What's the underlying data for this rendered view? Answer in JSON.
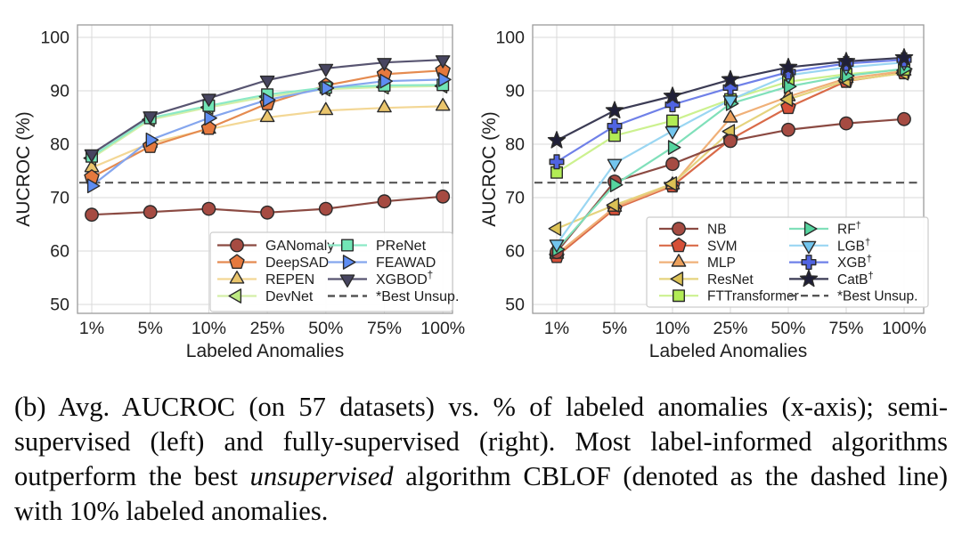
{
  "figure": {
    "caption": {
      "part1": "(b) Avg. AUCROC (on 57 datasets) vs. % of labeled anomalies (x-axis); semi-supervised (left) and fully-supervised (right). Most label-informed algorithms outperform the best ",
      "italic_word": "unsupervised",
      "part2": " algorithm CBLOF (denoted as the dashed line) with 10% labeled anomalies."
    }
  },
  "chart_data": [
    {
      "type": "line",
      "panel": "semi-supervised (left)",
      "title": "",
      "xlabel": "Labeled Anomalies",
      "ylabel": "AUCROC (%)",
      "categories": [
        "1%",
        "5%",
        "10%",
        "25%",
        "50%",
        "75%",
        "100%"
      ],
      "yticks": [
        50,
        60,
        70,
        80,
        90,
        100
      ],
      "ylim": [
        48,
        102
      ],
      "grid": true,
      "legend_position": "lower right",
      "legend_columns": 2,
      "legend_order": [
        "GANomaly",
        "DeepSAD",
        "REPEN",
        "DevNet",
        "PReNet",
        "FEAWAD",
        "XGBOD†",
        "*Best Unsup."
      ],
      "baseline": {
        "label": "*Best Unsup.",
        "value": 72.8,
        "color": "#555555",
        "style": "dashed"
      },
      "series": [
        {
          "name": "GANomaly",
          "marker": "circle",
          "color": "#A64B42",
          "line_color": "#8B4A42",
          "values": [
            66.8,
            67.3,
            67.9,
            67.2,
            67.9,
            69.3,
            70.2
          ]
        },
        {
          "name": "REPEN",
          "marker": "triangle-up",
          "color": "#EAC56C",
          "line_color": "#F3D795",
          "values": [
            75.6,
            80.2,
            82.8,
            85.0,
            86.3,
            86.8,
            87.1
          ]
        },
        {
          "name": "DevNet",
          "marker": "triangle-left",
          "color": "#BDE982",
          "line_color": "#D4EFA8",
          "values": [
            77.4,
            84.6,
            86.9,
            88.9,
            90.3,
            90.7,
            90.9
          ]
        },
        {
          "name": "DeepSAD",
          "marker": "pentagon",
          "color": "#E5793E",
          "line_color": "#E58B50",
          "values": [
            73.8,
            79.6,
            83.0,
            87.6,
            91.0,
            93.1,
            93.8
          ]
        },
        {
          "name": "PReNet",
          "marker": "square",
          "color": "#71E6B6",
          "line_color": "#8CE9C6",
          "values": [
            77.7,
            84.9,
            87.2,
            89.3,
            90.6,
            91.0,
            91.1
          ]
        },
        {
          "name": "FEAWAD",
          "marker": "triangle-right",
          "color": "#5E8DF2",
          "line_color": "#85A6EE",
          "values": [
            72.2,
            80.8,
            84.9,
            88.3,
            90.5,
            91.8,
            92.1
          ]
        },
        {
          "name": "XGBOD†",
          "marker": "triangle-down",
          "color": "#474560",
          "line_color": "#585571",
          "values": [
            78.2,
            85.3,
            88.6,
            92.0,
            94.2,
            95.3,
            95.8
          ]
        }
      ]
    },
    {
      "type": "line",
      "panel": "fully-supervised (right)",
      "title": "",
      "xlabel": "Labeled Anomalies",
      "ylabel": "AUCROC (%)",
      "categories": [
        "1%",
        "5%",
        "10%",
        "25%",
        "50%",
        "75%",
        "100%"
      ],
      "yticks": [
        50,
        60,
        70,
        80,
        90,
        100
      ],
      "ylim": [
        48,
        102
      ],
      "grid": true,
      "legend_position": "lower right",
      "legend_columns": 2,
      "legend_order": [
        "NB",
        "SVM",
        "MLP",
        "ResNet",
        "FTTransformer",
        "RF†",
        "LGB†",
        "XGB†",
        "CatB†",
        "*Best Unsup."
      ],
      "baseline": {
        "label": "*Best Unsup.",
        "value": 72.8,
        "color": "#555555",
        "style": "dashed"
      },
      "series": [
        {
          "name": "SVM",
          "marker": "pentagon",
          "color": "#D65038",
          "line_color": "#D96A48",
          "values": [
            59.0,
            67.9,
            72.2,
            80.9,
            86.9,
            91.8,
            93.4
          ]
        },
        {
          "name": "MLP",
          "marker": "triangle-up",
          "color": "#ECA05C",
          "line_color": "#F0B078",
          "values": [
            59.4,
            68.2,
            72.4,
            84.9,
            88.9,
            92.3,
            93.7
          ]
        },
        {
          "name": "ResNet",
          "marker": "triangle-left",
          "color": "#DCC255",
          "line_color": "#E5D37E",
          "values": [
            64.2,
            68.6,
            72.6,
            82.4,
            88.4,
            91.9,
            93.3
          ]
        },
        {
          "name": "NB",
          "marker": "circle",
          "color": "#A64B42",
          "line_color": "#8B4A42",
          "values": [
            59.8,
            73.0,
            76.3,
            80.6,
            82.7,
            83.9,
            84.7
          ]
        },
        {
          "name": "FTTransformer",
          "marker": "square",
          "color": "#B2EC55",
          "line_color": "#CCF18F",
          "values": [
            74.7,
            81.6,
            84.4,
            88.4,
            91.7,
            93.1,
            94.0
          ]
        },
        {
          "name": "RF†",
          "marker": "triangle-right",
          "color": "#55D6A0",
          "line_color": "#80E0BA",
          "values": [
            60.3,
            72.4,
            79.4,
            87.6,
            90.8,
            92.8,
            94.1
          ]
        },
        {
          "name": "LGB†",
          "marker": "triangle-down",
          "color": "#72C5EE",
          "line_color": "#9AD6F2",
          "values": [
            61.3,
            76.4,
            82.5,
            88.3,
            92.9,
            94.4,
            95.3
          ]
        },
        {
          "name": "XGB†",
          "marker": "plus",
          "color": "#5064E2",
          "line_color": "#6F80E8",
          "values": [
            76.7,
            83.4,
            87.4,
            90.6,
            93.5,
            95.1,
            95.8
          ]
        },
        {
          "name": "CatB†",
          "marker": "star",
          "color": "#1F1F38",
          "line_color": "#3C3C55",
          "values": [
            80.7,
            86.3,
            89.0,
            92.1,
            94.4,
            95.5,
            96.2
          ]
        }
      ]
    }
  ]
}
